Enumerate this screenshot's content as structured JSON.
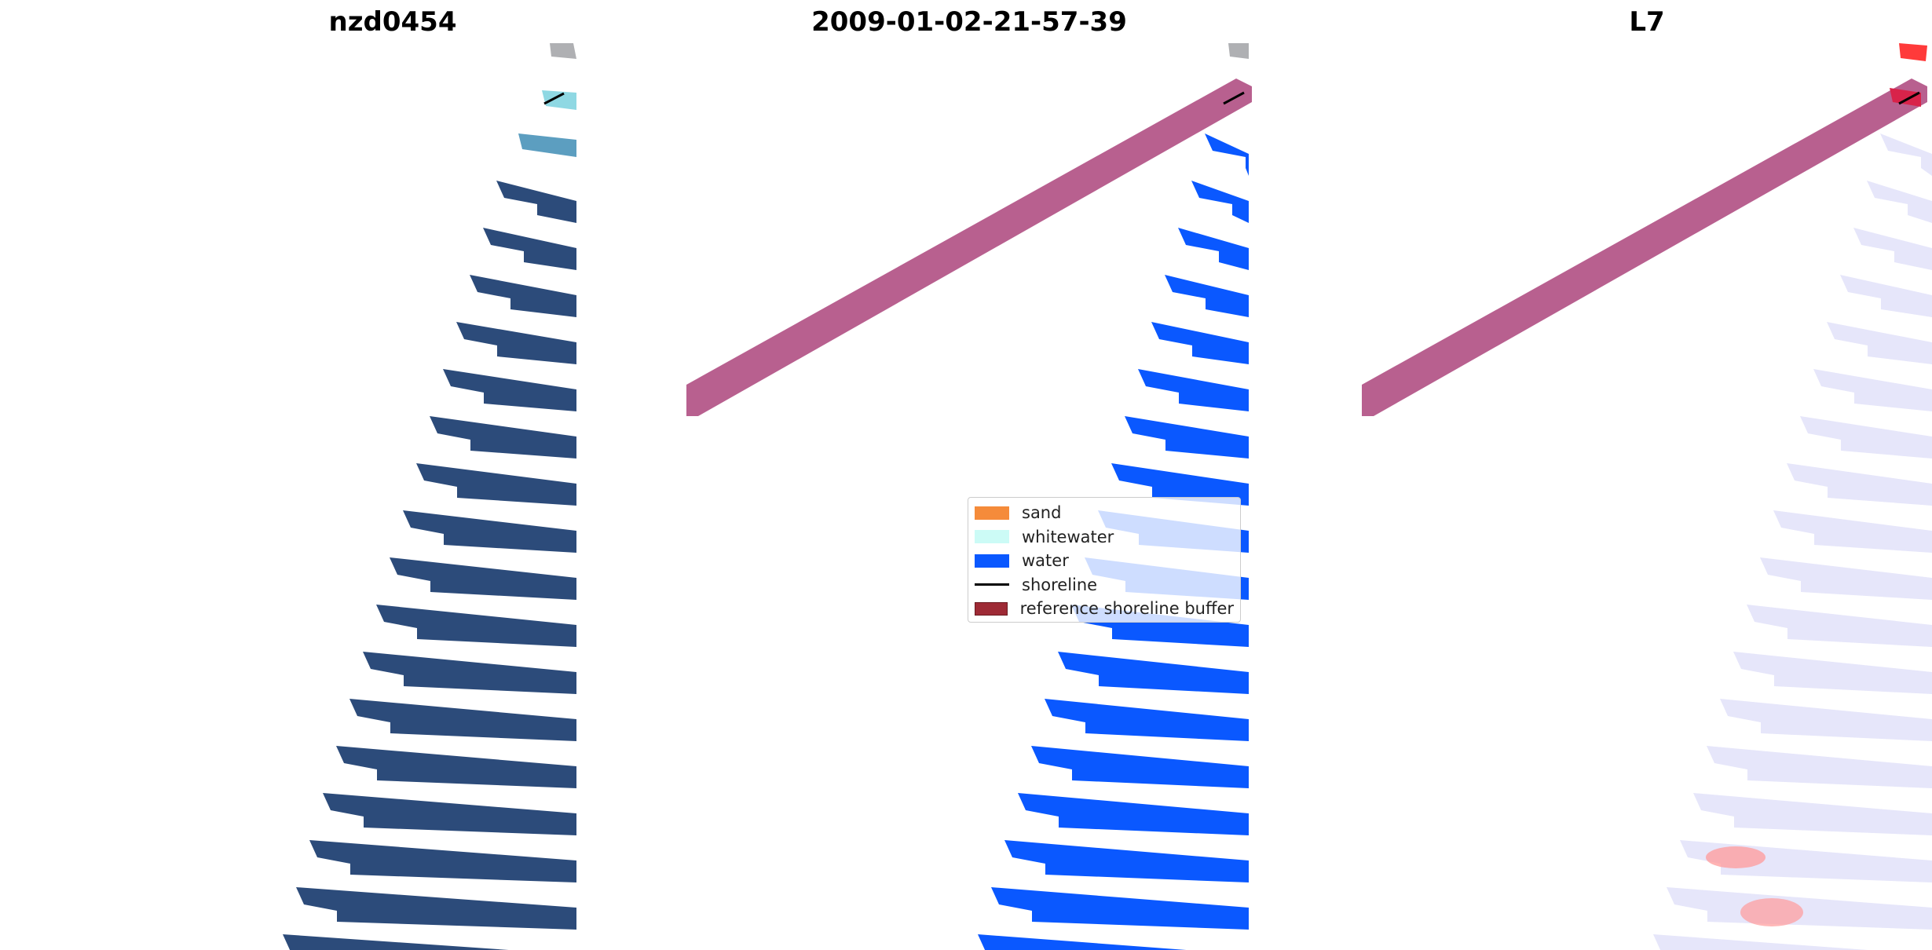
{
  "panels": [
    {
      "title": "nzd0454"
    },
    {
      "title": "2009-01-02-21-57-39"
    },
    {
      "title": "L7"
    }
  ],
  "legend": {
    "items": [
      {
        "label": "sand",
        "color": "#f58b3a",
        "kind": "patch"
      },
      {
        "label": "whitewater",
        "color": "#ccfbf6",
        "kind": "patch"
      },
      {
        "label": "water",
        "color": "#0a58ff",
        "kind": "patch"
      },
      {
        "label": "shoreline",
        "color": "#000000",
        "kind": "line"
      },
      {
        "label": "reference shoreline buffer",
        "color": "#9e2a35",
        "kind": "patch"
      }
    ]
  },
  "colors": {
    "rgb_water": "#2c4b7a",
    "water_class": "#0a58ff",
    "buffer": "#b8608f",
    "mndwi_water": "#e6e6fa",
    "mndwi_positive": "#ff4040"
  }
}
